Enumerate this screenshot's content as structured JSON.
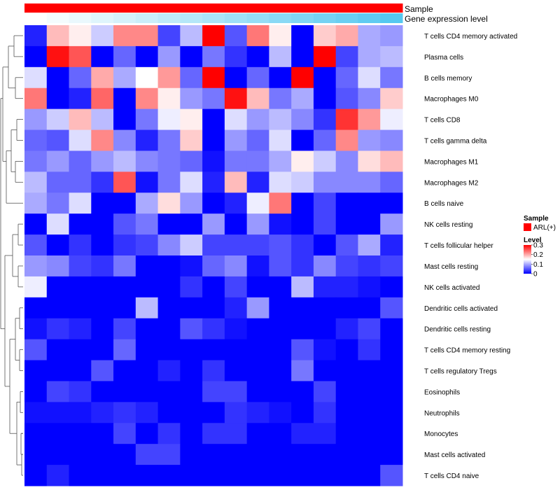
{
  "chart_data": {
    "type": "heatmap",
    "title": "",
    "annotation_tracks": [
      {
        "name": "Sample"
      },
      {
        "name": "Gene expression level"
      }
    ],
    "rows": [
      "T cells CD4 memory activated",
      "Plasma cells",
      "B cells memory",
      "Macrophages M0",
      "T cells CD8",
      "T cells gamma delta",
      "Macrophages M1",
      "Macrophages M2",
      "B cells naive",
      "NK cells resting",
      "T cells follicular helper",
      "Mast cells resting",
      "NK cells activated",
      "Dendritic cells activated",
      "Dendritic cells resting",
      "T cells CD4 memory resting",
      "T cells regulatory  Tregs",
      "Eosinophils",
      "Neutrophils",
      "Monocytes",
      "Mast cells activated",
      "T cells CD4 naive"
    ],
    "values": [
      [
        0.02,
        0.19,
        0.16,
        0.12,
        0.22,
        0.22,
        0.04,
        0.11,
        0.3,
        0.05,
        0.23,
        0.16,
        0.0,
        0.18,
        0.2,
        0.1,
        0.09
      ],
      [
        0.0,
        0.29,
        0.25,
        0.0,
        0.06,
        0.0,
        0.09,
        0.0,
        0.07,
        0.03,
        0.0,
        0.11,
        0.0,
        0.3,
        0.04,
        0.1,
        0.11
      ],
      [
        0.13,
        0.0,
        0.06,
        0.2,
        0.1,
        0.15,
        0.21,
        0.06,
        0.3,
        0.0,
        0.06,
        0.0,
        0.3,
        0.0,
        0.06,
        0.13,
        0.07
      ],
      [
        0.23,
        0.0,
        0.02,
        0.24,
        0.0,
        0.22,
        0.16,
        0.09,
        0.07,
        0.29,
        0.19,
        0.07,
        0.1,
        0.0,
        0.05,
        0.08,
        0.18
      ],
      [
        0.09,
        0.12,
        0.19,
        0.11,
        0.0,
        0.07,
        0.14,
        0.16,
        0.0,
        0.13,
        0.09,
        0.11,
        0.08,
        0.03,
        0.27,
        0.21,
        0.14
      ],
      [
        0.06,
        0.05,
        0.13,
        0.22,
        0.08,
        0.02,
        0.07,
        0.18,
        0.0,
        0.09,
        0.06,
        0.13,
        0.0,
        0.06,
        0.22,
        0.09,
        0.08
      ],
      [
        0.07,
        0.09,
        0.06,
        0.09,
        0.11,
        0.08,
        0.07,
        0.06,
        0.01,
        0.07,
        0.07,
        0.1,
        0.16,
        0.12,
        0.08,
        0.17,
        0.19
      ],
      [
        0.11,
        0.06,
        0.06,
        0.03,
        0.25,
        0.01,
        0.07,
        0.13,
        0.02,
        0.19,
        0.02,
        0.13,
        0.12,
        0.08,
        0.08,
        0.08,
        0.06
      ],
      [
        0.1,
        0.07,
        0.13,
        0.0,
        0.0,
        0.1,
        0.17,
        0.09,
        0.0,
        0.02,
        0.14,
        0.23,
        0.0,
        0.04,
        0.0,
        0.0,
        0.0
      ],
      [
        0.0,
        0.13,
        0.0,
        0.0,
        0.05,
        0.07,
        0.0,
        0.0,
        0.09,
        0.0,
        0.09,
        0.01,
        0.0,
        0.04,
        0.0,
        0.0,
        0.09
      ],
      [
        0.05,
        0.0,
        0.03,
        0.0,
        0.03,
        0.04,
        0.08,
        0.12,
        0.04,
        0.04,
        0.04,
        0.05,
        0.03,
        0.0,
        0.05,
        0.1,
        0.02
      ],
      [
        0.09,
        0.08,
        0.04,
        0.03,
        0.07,
        0.0,
        0.0,
        0.01,
        0.06,
        0.08,
        0.01,
        0.05,
        0.03,
        0.08,
        0.04,
        0.03,
        0.04
      ],
      [
        0.14,
        0.0,
        0.0,
        0.0,
        0.0,
        0.0,
        0.0,
        0.03,
        0.0,
        0.04,
        0.0,
        0.0,
        0.11,
        0.02,
        0.02,
        0.01,
        0.0
      ],
      [
        0.0,
        0.0,
        0.0,
        0.0,
        0.0,
        0.11,
        0.0,
        0.0,
        0.0,
        0.02,
        0.09,
        0.0,
        0.0,
        0.0,
        0.0,
        0.0,
        0.05
      ],
      [
        0.01,
        0.03,
        0.02,
        0.0,
        0.04,
        0.0,
        0.0,
        0.05,
        0.03,
        0.01,
        0.0,
        0.0,
        0.0,
        0.0,
        0.02,
        0.04,
        0.0
      ],
      [
        0.05,
        0.0,
        0.0,
        0.0,
        0.06,
        0.0,
        0.0,
        0.0,
        0.0,
        0.0,
        0.0,
        0.0,
        0.05,
        0.01,
        0.0,
        0.03,
        0.0
      ],
      [
        0.0,
        0.0,
        0.0,
        0.05,
        0.0,
        0.0,
        0.02,
        0.0,
        0.03,
        0.0,
        0.0,
        0.0,
        0.07,
        0.0,
        0.0,
        0.0,
        0.0
      ],
      [
        0.0,
        0.04,
        0.03,
        0.0,
        0.0,
        0.0,
        0.0,
        0.0,
        0.04,
        0.04,
        0.0,
        0.0,
        0.0,
        0.04,
        0.0,
        0.0,
        0.0
      ],
      [
        0.01,
        0.01,
        0.01,
        0.02,
        0.03,
        0.02,
        0.0,
        0.0,
        0.0,
        0.03,
        0.02,
        0.01,
        0.0,
        0.03,
        0.0,
        0.0,
        0.0
      ],
      [
        0.0,
        0.0,
        0.0,
        0.0,
        0.04,
        0.0,
        0.03,
        0.0,
        0.03,
        0.03,
        0.0,
        0.0,
        0.02,
        0.02,
        0.0,
        0.0,
        0.0
      ],
      [
        0.0,
        0.0,
        0.0,
        0.0,
        0.0,
        0.04,
        0.04,
        0.0,
        0.0,
        0.0,
        0.0,
        0.0,
        0.0,
        0.0,
        0.0,
        0.0,
        0.0
      ],
      [
        0.0,
        0.02,
        0.0,
        0.0,
        0.0,
        0.0,
        0.0,
        0.0,
        0.0,
        0.0,
        0.0,
        0.0,
        0.0,
        0.0,
        0.0,
        0.0,
        0.05
      ]
    ],
    "color_scale": {
      "low": "#0000ff",
      "mid": "#ffffff",
      "high": "#ff0000",
      "min": 0,
      "mid_value": 0.15,
      "max": 0.3
    },
    "sample_color": "#ff0000",
    "gene_expression_gradient": {
      "start": "#ffffff",
      "end": "#55c8f0"
    },
    "legend": {
      "position": "right",
      "sample_title": "Sample",
      "sample_entries": [
        {
          "label": "ARL(+)",
          "color": "#ff0000"
        }
      ],
      "level_title": "Level",
      "level_ticks": [
        {
          "value": 0.3,
          "label": "0.3"
        },
        {
          "value": 0.2,
          "label": "0.2"
        },
        {
          "value": 0.1,
          "label": "0.1"
        },
        {
          "value": 0.0,
          "label": "0"
        }
      ]
    }
  }
}
